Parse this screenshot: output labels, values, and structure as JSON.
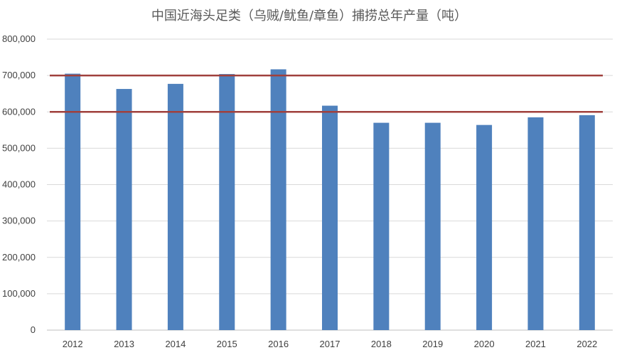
{
  "chart_data": {
    "type": "bar",
    "title": "中国近海头足类（乌贼/鱿鱼/章鱼）捕捞总年产量（吨）",
    "xlabel": "",
    "ylabel": "",
    "categories": [
      "2012",
      "2013",
      "2014",
      "2015",
      "2016",
      "2017",
      "2018",
      "2019",
      "2020",
      "2021",
      "2022"
    ],
    "values": [
      705000,
      663000,
      677000,
      704000,
      717000,
      617000,
      570000,
      570000,
      564000,
      585000,
      591000
    ],
    "ylim": [
      0,
      800000
    ],
    "yticks": [
      "0",
      "100,000",
      "200,000",
      "300,000",
      "400,000",
      "500,000",
      "600,000",
      "700,000",
      "800,000"
    ],
    "grid": true,
    "legend": "none",
    "reference_lines": [
      700000,
      600000
    ],
    "colors": {
      "bar": "#4F81BD",
      "reference_line": "#A0403C",
      "grid": "#D9D9D9"
    }
  }
}
